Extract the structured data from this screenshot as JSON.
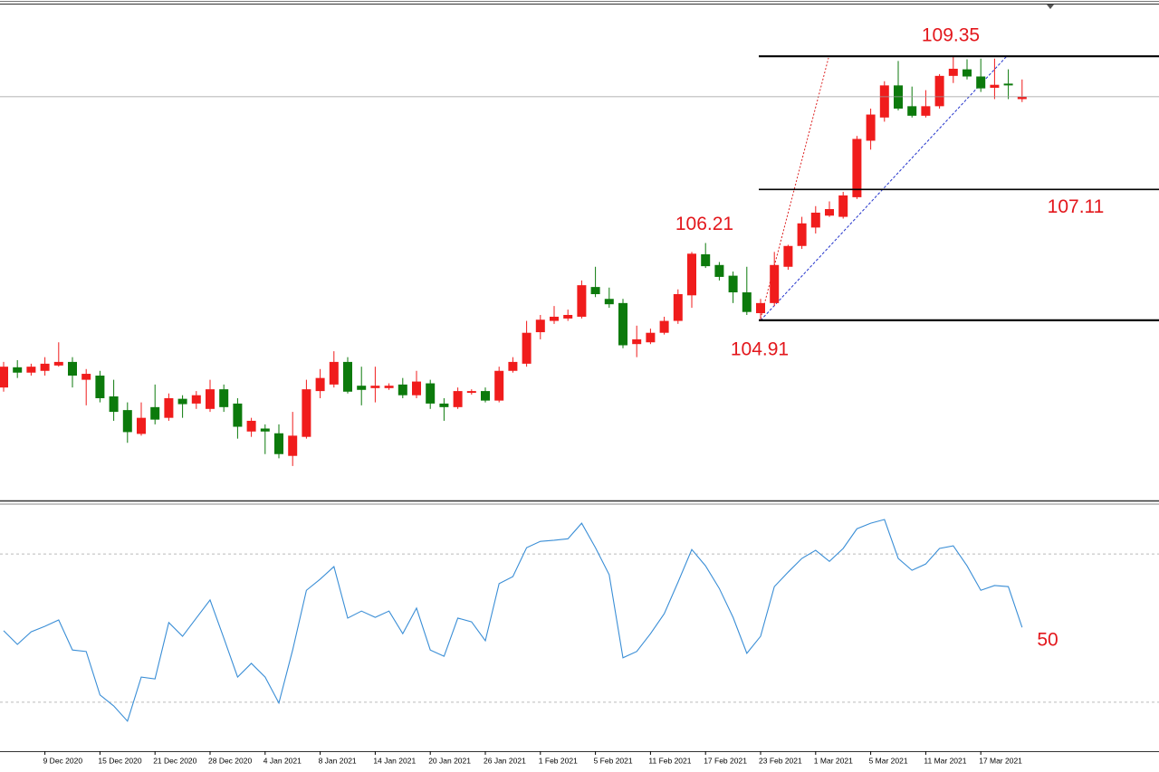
{
  "chart_data": [
    {
      "type": "candlestick",
      "ylim": [
        101.88,
        110.22
      ],
      "up_color": "#f01c1c",
      "down_color": "#0c7a0c",
      "categories": [
        null,
        null,
        null,
        "9 Dec 2020",
        null,
        null,
        null,
        "15 Dec 2020",
        null,
        null,
        null,
        "21 Dec 2020",
        null,
        null,
        null,
        "28 Dec 2020",
        null,
        null,
        null,
        "4 Jan 2021",
        null,
        null,
        null,
        "8 Jan 2021",
        null,
        null,
        null,
        "14 Jan 2021",
        null,
        null,
        null,
        "20 Jan 2021",
        null,
        null,
        null,
        "26 Jan 2021",
        null,
        null,
        null,
        "1 Feb 2021",
        null,
        null,
        null,
        "5 Feb 2021",
        null,
        null,
        null,
        "11 Feb 2021",
        null,
        null,
        null,
        "17 Feb 2021",
        null,
        null,
        null,
        "23 Feb 2021",
        null,
        null,
        null,
        "1 Mar 2021",
        null,
        null,
        null,
        "5 Mar 2021",
        null,
        null,
        null,
        "11 Mar 2021",
        null,
        null,
        null,
        "17 Mar 2021",
        null,
        null,
        null
      ],
      "open": [
        103.78,
        104.12,
        104.03,
        104.06,
        104.15,
        104.21,
        103.91,
        103.98,
        103.63,
        103.4,
        103.0,
        103.45,
        103.27,
        103.59,
        103.51,
        103.42,
        103.75,
        103.51,
        103.04,
        103.09,
        103.01,
        102.63,
        102.95,
        103.72,
        103.83,
        104.21,
        103.81,
        103.77,
        103.77,
        103.83,
        103.65,
        103.85,
        103.51,
        103.45,
        103.69,
        103.72,
        103.56,
        104.06,
        104.18,
        104.71,
        104.9,
        104.94,
        104.97,
        105.47,
        105.27,
        105.2,
        104.51,
        104.54,
        104.7,
        104.9,
        105.33,
        106.02,
        105.84,
        105.66,
        105.38,
        105.03,
        105.2,
        105.81,
        106.16,
        106.47,
        106.67,
        106.65,
        106.98,
        107.93,
        108.32,
        108.86,
        108.51,
        108.35,
        108.51,
        109.02,
        109.13,
        109.01,
        108.82,
        108.89,
        108.63
      ],
      "high": [
        104.21,
        104.24,
        104.18,
        104.29,
        104.54,
        104.29,
        104.09,
        104.06,
        103.91,
        103.53,
        103.53,
        103.83,
        103.68,
        103.65,
        103.72,
        103.91,
        103.83,
        103.6,
        103.27,
        103.16,
        103.16,
        103.37,
        103.91,
        104.09,
        104.39,
        104.29,
        104.13,
        104.13,
        103.85,
        103.94,
        104.06,
        103.91,
        103.6,
        103.78,
        103.75,
        103.78,
        104.13,
        104.29,
        104.9,
        105.0,
        105.15,
        105.09,
        105.58,
        105.81,
        105.46,
        105.27,
        104.82,
        104.77,
        104.97,
        105.43,
        106.06,
        106.21,
        105.89,
        105.73,
        105.81,
        105.27,
        106.06,
        106.18,
        106.65,
        106.83,
        106.91,
        107.07,
        108.01,
        108.47,
        108.93,
        109.27,
        108.84,
        108.78,
        109.05,
        109.35,
        109.3,
        109.31,
        109.31,
        109.13,
        108.96
      ],
      "low": [
        103.71,
        103.94,
        103.98,
        103.98,
        104.13,
        103.78,
        103.48,
        103.53,
        103.22,
        102.85,
        102.97,
        103.16,
        103.22,
        103.27,
        103.42,
        103.37,
        103.37,
        102.92,
        102.95,
        102.66,
        102.59,
        102.46,
        102.92,
        103.6,
        103.78,
        103.68,
        103.48,
        103.53,
        103.74,
        103.6,
        103.6,
        103.42,
        103.22,
        103.42,
        103.66,
        103.53,
        103.53,
        104.03,
        104.13,
        104.59,
        104.85,
        104.9,
        104.94,
        105.3,
        105.12,
        104.44,
        104.29,
        104.51,
        104.67,
        104.85,
        105.12,
        105.79,
        105.58,
        105.2,
        105.0,
        104.91,
        105.15,
        105.76,
        106.11,
        106.37,
        106.65,
        106.62,
        106.95,
        107.78,
        108.25,
        108.44,
        108.32,
        108.32,
        108.47,
        108.9,
        108.96,
        108.75,
        108.63,
        108.63,
        108.58
      ],
      "close": [
        104.13,
        104.03,
        104.13,
        104.18,
        104.21,
        103.98,
        104.01,
        103.6,
        103.37,
        103.03,
        103.27,
        103.24,
        103.6,
        103.5,
        103.65,
        103.75,
        103.45,
        103.12,
        103.22,
        103.04,
        102.66,
        102.97,
        103.75,
        103.94,
        104.21,
        103.71,
        103.74,
        103.81,
        103.81,
        103.65,
        103.88,
        103.51,
        103.45,
        103.72,
        103.72,
        103.56,
        104.06,
        104.21,
        104.7,
        104.92,
        104.97,
        105.0,
        105.5,
        105.35,
        105.18,
        104.49,
        104.59,
        104.7,
        104.9,
        105.35,
        106.03,
        105.82,
        105.64,
        105.38,
        105.05,
        105.2,
        105.84,
        106.16,
        106.54,
        106.72,
        106.78,
        107.01,
        107.96,
        108.37,
        108.86,
        108.47,
        108.35,
        108.51,
        109.02,
        109.14,
        109.01,
        108.81,
        108.87,
        108.86,
        108.67
      ],
      "levels": [
        109.35,
        107.11,
        104.91
      ],
      "annotations": [
        106.21
      ]
    },
    {
      "type": "line",
      "ylim": [
        16.8,
        83.7
      ],
      "color": "#3a8ed6",
      "values": [
        49.3,
        45.6,
        49.0,
        50.5,
        52.2,
        44.1,
        43.7,
        32.0,
        29.0,
        24.9,
        36.8,
        36.3,
        51.5,
        47.8,
        52.7,
        57.6,
        47.3,
        36.8,
        40.5,
        36.8,
        29.8,
        44.1,
        60.2,
        63.2,
        66.6,
        52.7,
        54.6,
        52.9,
        54.6,
        48.5,
        55.4,
        44.1,
        42.4,
        52.7,
        51.7,
        46.6,
        62.0,
        63.9,
        71.7,
        73.4,
        73.7,
        74.1,
        78.3,
        71.7,
        64.4,
        42.0,
        43.7,
        48.5,
        53.9,
        62.4,
        71.2,
        66.8,
        60.7,
        52.9,
        43.2,
        47.8,
        61.2,
        65.1,
        68.8,
        71.0,
        68.0,
        71.5,
        76.8,
        78.3,
        79.3,
        68.8,
        65.6,
        67.3,
        71.5,
        72.2,
        66.8,
        60.2,
        61.5,
        61.2,
        50.2
      ],
      "levels": [
        30,
        70
      ],
      "annotations": [
        50
      ]
    }
  ]
}
